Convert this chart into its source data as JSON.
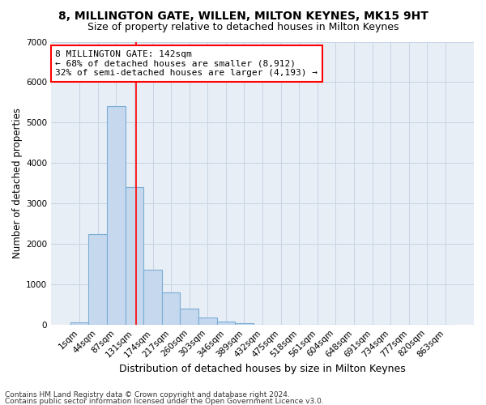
{
  "title": "8, MILLINGTON GATE, WILLEN, MILTON KEYNES, MK15 9HT",
  "subtitle": "Size of property relative to detached houses in Milton Keynes",
  "xlabel": "Distribution of detached houses by size in Milton Keynes",
  "ylabel": "Number of detached properties",
  "footer_line1": "Contains HM Land Registry data © Crown copyright and database right 2024.",
  "footer_line2": "Contains public sector information licensed under the Open Government Licence v3.0.",
  "bin_labels": [
    "1sqm",
    "44sqm",
    "87sqm",
    "131sqm",
    "174sqm",
    "217sqm",
    "260sqm",
    "303sqm",
    "346sqm",
    "389sqm",
    "432sqm",
    "475sqm",
    "518sqm",
    "561sqm",
    "604sqm",
    "648sqm",
    "691sqm",
    "734sqm",
    "777sqm",
    "820sqm",
    "863sqm"
  ],
  "bar_values": [
    50,
    2250,
    5400,
    3400,
    1350,
    800,
    400,
    175,
    80,
    30,
    5,
    0,
    0,
    0,
    0,
    0,
    0,
    0,
    0,
    0,
    0
  ],
  "bar_color": "#c5d8ee",
  "bar_edge_color": "#7aadd4",
  "vline_x": 3.1,
  "vline_color": "red",
  "annotation_text": "8 MILLINGTON GATE: 142sqm\n← 68% of detached houses are smaller (8,912)\n32% of semi-detached houses are larger (4,193) →",
  "annotation_box_color": "white",
  "annotation_border_color": "red",
  "ylim": [
    0,
    7000
  ],
  "yticks": [
    0,
    1000,
    2000,
    3000,
    4000,
    5000,
    6000,
    7000
  ],
  "grid_color": "#c8d4e4",
  "background_color": "#e8eef6",
  "title_fontsize": 10,
  "subtitle_fontsize": 9,
  "xlabel_fontsize": 9,
  "ylabel_fontsize": 8.5,
  "tick_fontsize": 7.5,
  "footer_fontsize": 6.5,
  "annotation_fontsize": 8
}
